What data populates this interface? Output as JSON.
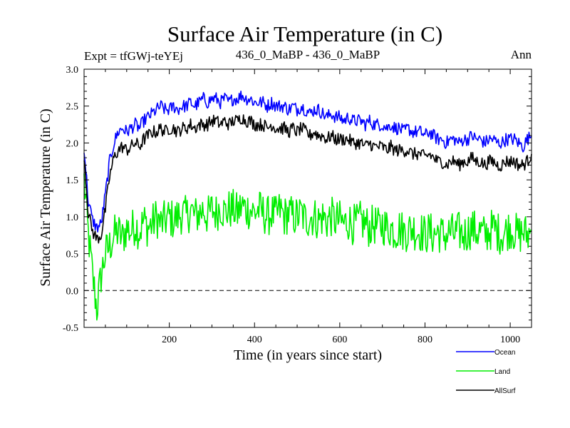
{
  "chart_data": {
    "type": "line",
    "title": "Surface Air Temperature (in C)",
    "subtitle_left": "Expt = tfGWj-teYEj",
    "subtitle_center": "436_0_MaBP - 436_0_MaBP",
    "subtitle_right": "Ann",
    "xlabel": "Time (in years since start)",
    "ylabel": "Surface Air Temperature (in C)",
    "xlim": [
      0,
      1050
    ],
    "ylim": [
      -0.5,
      3.0
    ],
    "x_ticks": [
      200,
      400,
      600,
      800,
      1000
    ],
    "x_tick_labels": [
      "200",
      "400",
      "600",
      "800",
      "1000"
    ],
    "y_ticks": [
      -0.5,
      0.0,
      0.5,
      1.0,
      1.5,
      2.0,
      2.5,
      3.0
    ],
    "y_tick_labels": [
      "-0.5",
      "0.0",
      "0.5",
      "1.0",
      "1.5",
      "2.0",
      "2.5",
      "3.0"
    ],
    "reference_line": {
      "y": 0.0,
      "style": "dashed"
    },
    "x_step_years": 10,
    "legend_position": "bottom-right",
    "series": [
      {
        "name": "Ocean",
        "color": "#0000ff",
        "values": [
          1.95,
          1.2,
          0.95,
          0.85,
          0.9,
          1.3,
          1.75,
          2.0,
          2.15,
          2.2,
          2.15,
          2.2,
          2.25,
          2.2,
          2.3,
          2.35,
          2.4,
          2.45,
          2.5,
          2.45,
          2.45,
          2.5,
          2.45,
          2.5,
          2.5,
          2.55,
          2.5,
          2.55,
          2.6,
          2.55,
          2.6,
          2.6,
          2.55,
          2.6,
          2.55,
          2.6,
          2.6,
          2.65,
          2.6,
          2.6,
          2.55,
          2.55,
          2.55,
          2.5,
          2.55,
          2.5,
          2.5,
          2.5,
          2.45,
          2.5,
          2.45,
          2.5,
          2.45,
          2.4,
          2.45,
          2.45,
          2.4,
          2.35,
          2.4,
          2.35,
          2.35,
          2.3,
          2.35,
          2.3,
          2.3,
          2.3,
          2.25,
          2.3,
          2.25,
          2.25,
          2.25,
          2.2,
          2.25,
          2.2,
          2.2,
          2.15,
          2.2,
          2.15,
          2.15,
          2.15,
          2.1,
          2.15,
          2.1,
          2.05,
          2.05,
          2.0,
          2.05,
          2.05,
          2.0,
          2.05,
          2.05,
          2.1,
          2.05,
          2.05,
          2.0,
          2.05,
          2.05,
          2.0,
          2.0,
          2.05,
          2.05,
          2.05,
          2.0,
          1.95,
          2.05,
          2.1
        ]
      },
      {
        "name": "Land",
        "color": "#00ee00",
        "values": [
          1.5,
          0.75,
          0.2,
          -0.25,
          0.2,
          0.5,
          0.6,
          0.75,
          0.8,
          0.7,
          0.85,
          0.8,
          0.9,
          0.8,
          0.95,
          0.85,
          0.9,
          1.0,
          0.9,
          0.95,
          1.0,
          0.95,
          1.0,
          1.05,
          1.0,
          1.1,
          1.0,
          1.05,
          1.1,
          1.0,
          1.1,
          1.05,
          1.15,
          1.05,
          1.1,
          1.1,
          1.05,
          1.15,
          1.1,
          1.1,
          1.05,
          1.1,
          1.05,
          1.0,
          1.05,
          1.0,
          1.1,
          1.0,
          1.05,
          1.0,
          1.0,
          1.05,
          0.95,
          1.0,
          1.0,
          0.95,
          1.0,
          0.95,
          1.0,
          0.95,
          0.95,
          0.9,
          0.95,
          0.9,
          0.9,
          0.95,
          0.9,
          0.85,
          0.9,
          0.85,
          0.9,
          0.85,
          0.85,
          0.8,
          0.85,
          0.8,
          0.8,
          0.85,
          0.8,
          0.8,
          0.75,
          0.8,
          0.75,
          0.8,
          0.75,
          0.75,
          0.8,
          0.75,
          0.8,
          0.75,
          0.8,
          0.85,
          0.8,
          0.8,
          0.75,
          0.8,
          0.85,
          0.8,
          0.75,
          0.8,
          0.85,
          0.8,
          0.75,
          0.8,
          0.75,
          0.8
        ]
      },
      {
        "name": "AllSurf",
        "color": "#000000",
        "values": [
          1.85,
          1.05,
          0.8,
          0.7,
          0.75,
          1.1,
          1.55,
          1.8,
          1.9,
          1.95,
          1.9,
          1.95,
          2.0,
          1.95,
          2.05,
          2.1,
          2.15,
          2.15,
          2.2,
          2.15,
          2.2,
          2.2,
          2.15,
          2.2,
          2.2,
          2.25,
          2.2,
          2.25,
          2.25,
          2.25,
          2.3,
          2.3,
          2.25,
          2.3,
          2.25,
          2.3,
          2.3,
          2.35,
          2.3,
          2.3,
          2.25,
          2.25,
          2.25,
          2.2,
          2.25,
          2.2,
          2.2,
          2.2,
          2.15,
          2.2,
          2.15,
          2.2,
          2.15,
          2.1,
          2.15,
          2.1,
          2.1,
          2.05,
          2.1,
          2.05,
          2.05,
          2.05,
          2.05,
          2.0,
          2.0,
          2.0,
          1.95,
          2.0,
          1.95,
          1.95,
          1.95,
          1.9,
          1.95,
          1.9,
          1.9,
          1.9,
          1.9,
          1.85,
          1.85,
          1.85,
          1.8,
          1.85,
          1.8,
          1.75,
          1.75,
          1.7,
          1.75,
          1.75,
          1.7,
          1.75,
          1.75,
          1.8,
          1.75,
          1.75,
          1.7,
          1.75,
          1.75,
          1.7,
          1.7,
          1.75,
          1.75,
          1.75,
          1.7,
          1.7,
          1.75,
          1.85
        ]
      }
    ]
  }
}
